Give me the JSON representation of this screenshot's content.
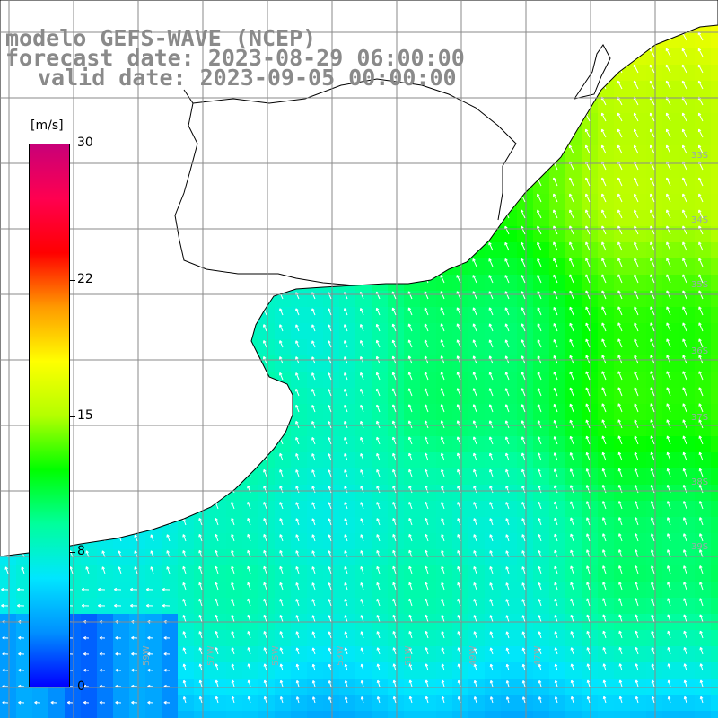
{
  "title": {
    "line1": "modelo GEFS-WAVE (NCEP)",
    "line2": "forecast date: 2023-08-29 06:00:00",
    "line3": "valid date: 2023-09-05 00:00:00"
  },
  "colorbar": {
    "unit": "[m/s]",
    "min": 0,
    "max": 30,
    "ticks": [
      "30",
      "22",
      "15",
      "8",
      "0"
    ],
    "colors": [
      "#0000ff",
      "#0090ff",
      "#00e6ff",
      "#00ff9c",
      "#00ff00",
      "#b4ff00",
      "#ffff00",
      "#ff9a00",
      "#ff0000",
      "#ff0050",
      "#c80078"
    ]
  },
  "map": {
    "background_color": "#ffffff",
    "land_color": "#ffffff",
    "coastline_color": "#000000",
    "grid_color": "#8a8a8a",
    "arrow_color": "#ffffff",
    "lon_labels": [
      "59W",
      "57W",
      "55W",
      "53W",
      "51W",
      "49W",
      "47W"
    ],
    "lat_labels": [
      "33S",
      "34S",
      "35S",
      "36S",
      "37S",
      "38S",
      "39S"
    ],
    "wind_field_description_levels_ms": {
      "south_west": 3,
      "open_ocean": 8,
      "north_east": 13
    }
  }
}
